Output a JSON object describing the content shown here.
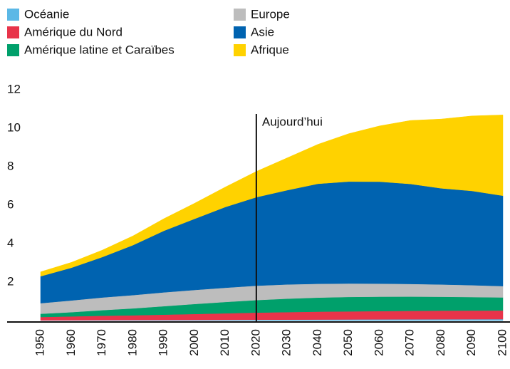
{
  "chart_data": {
    "type": "stacked_area",
    "x": [
      1950,
      1960,
      1970,
      1980,
      1990,
      2000,
      2010,
      2020,
      2030,
      2040,
      2050,
      2060,
      2070,
      2080,
      2090,
      2100
    ],
    "xticks": [
      1950,
      1960,
      1970,
      1980,
      1990,
      2000,
      2010,
      2020,
      2030,
      2040,
      2050,
      2060,
      2070,
      2080,
      2090,
      2100
    ],
    "xlim": [
      1950,
      2100
    ],
    "ylim": [
      0,
      12
    ],
    "yticks": [
      2,
      4,
      6,
      8,
      10,
      12
    ],
    "annotation": {
      "x": 2020,
      "label": "Aujourd’hui"
    },
    "series": [
      {
        "name": "Océanie",
        "color": "#5bb8e6",
        "values": [
          0.013,
          0.016,
          0.02,
          0.023,
          0.027,
          0.031,
          0.037,
          0.043,
          0.048,
          0.053,
          0.057,
          0.061,
          0.064,
          0.067,
          0.07,
          0.072
        ]
      },
      {
        "name": "Amérique du Nord",
        "color": "#e8344a",
        "values": [
          0.17,
          0.2,
          0.23,
          0.25,
          0.28,
          0.31,
          0.34,
          0.37,
          0.39,
          0.41,
          0.42,
          0.43,
          0.44,
          0.45,
          0.45,
          0.45
        ]
      },
      {
        "name": "Amérique latine et Caraïbes",
        "color": "#00a06b",
        "values": [
          0.17,
          0.22,
          0.29,
          0.36,
          0.44,
          0.52,
          0.59,
          0.65,
          0.7,
          0.73,
          0.75,
          0.75,
          0.74,
          0.72,
          0.7,
          0.68
        ]
      },
      {
        "name": "Europe",
        "color": "#bdbdbd",
        "values": [
          0.55,
          0.61,
          0.66,
          0.69,
          0.72,
          0.73,
          0.74,
          0.75,
          0.74,
          0.72,
          0.7,
          0.68,
          0.66,
          0.64,
          0.62,
          0.59
        ]
      },
      {
        "name": "Asie",
        "color": "#0063b0",
        "values": [
          1.4,
          1.7,
          2.1,
          2.6,
          3.2,
          3.7,
          4.2,
          4.6,
          4.9,
          5.2,
          5.3,
          5.3,
          5.2,
          5.0,
          4.9,
          4.7
        ]
      },
      {
        "name": "Afrique",
        "color": "#ffd200",
        "values": [
          0.23,
          0.28,
          0.36,
          0.48,
          0.63,
          0.81,
          1.04,
          1.34,
          1.68,
          2.05,
          2.49,
          2.9,
          3.3,
          3.6,
          3.9,
          4.2
        ]
      }
    ]
  }
}
